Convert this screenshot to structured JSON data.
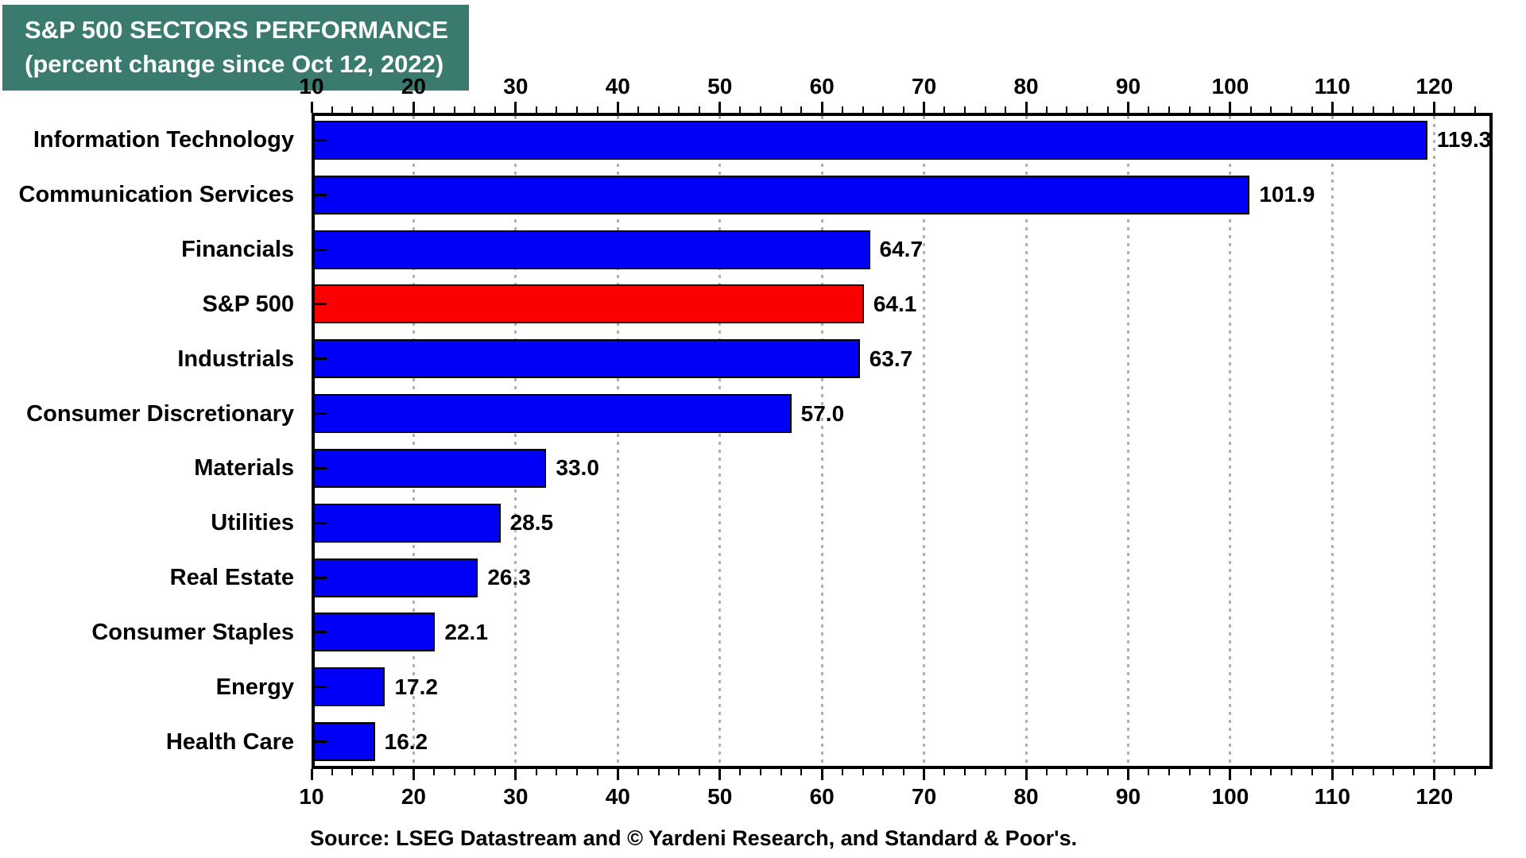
{
  "chart_data": {
    "type": "bar",
    "orientation": "horizontal",
    "title": "S&P 500 SECTORS PERFORMANCE",
    "subtitle": "(percent change since Oct 12, 2022)",
    "source": "Source: LSEG Datastream and © Yardeni Research, and Standard & Poor's.",
    "xlim": [
      10,
      125.7
    ],
    "x_ticks": [
      10,
      20,
      30,
      40,
      50,
      60,
      70,
      80,
      90,
      100,
      110,
      120
    ],
    "x_minor_tick_step": 2,
    "grid": "vertical dotted gridlines at major ticks",
    "axis_positions": [
      "top",
      "bottom"
    ],
    "categories": [
      "Information Technology",
      "Communication Services",
      "Financials",
      "S&P 500",
      "Industrials",
      "Consumer Discretionary",
      "Materials",
      "Utilities",
      "Real Estate",
      "Consumer Staples",
      "Energy",
      "Health Care"
    ],
    "values": [
      119.3,
      101.9,
      64.7,
      64.1,
      63.7,
      57.0,
      33.0,
      28.5,
      26.3,
      22.1,
      17.2,
      16.2
    ],
    "value_labels": [
      "119.3",
      "101.9",
      "64.7",
      "64.1",
      "63.7",
      "57.0",
      "33.0",
      "28.5",
      "26.3",
      "22.1",
      "17.2",
      "16.2"
    ],
    "highlight_category": "S&P 500",
    "colors": {
      "bar": "#0000F8",
      "highlight_bar": "#FA0000",
      "title_bg": "#3A7A6F",
      "title_text": "#FFFFFF",
      "grid": "#B0B0B0",
      "axis": "#000000",
      "text": "#000000"
    }
  }
}
